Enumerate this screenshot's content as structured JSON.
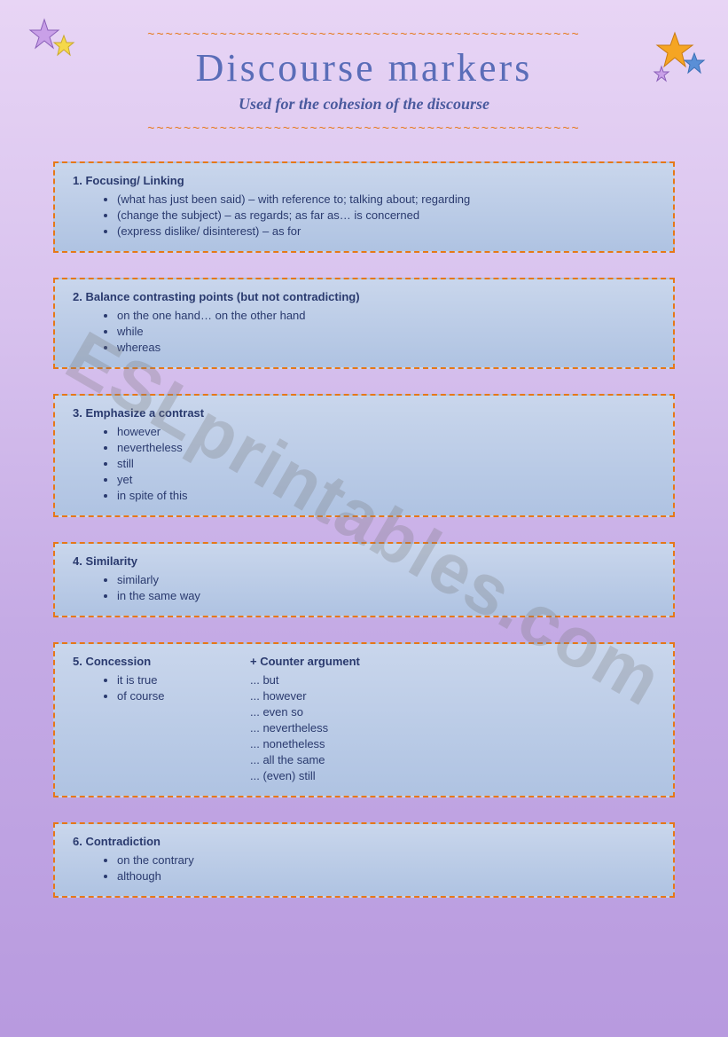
{
  "header": {
    "title": "Discourse markers",
    "subtitle": "Used for the cohesion of the discourse",
    "wave": "~~~~~~~~~~~~~~~~~~~~~~~~~~~~~~~~~~~~~~~~~~~~~~~~"
  },
  "watermark": "ESLprintables.com",
  "boxes": [
    {
      "num": "1.",
      "title": "Focusing/ Linking",
      "type": "simple",
      "items": [
        "(what has just been said) – with reference to; talking about; regarding",
        "(change the subject) – as regards;  as far as… is concerned",
        "(express dislike/ disinterest) – as for"
      ]
    },
    {
      "num": "2.",
      "title": "Balance contrasting points (but not contradicting)",
      "type": "simple",
      "items": [
        "on the one hand… on the other hand",
        "while",
        "whereas"
      ]
    },
    {
      "num": "3.",
      "title": "Emphasize a contrast",
      "type": "simple",
      "items": [
        "however",
        "nevertheless",
        "still",
        "yet",
        "in spite of this"
      ]
    },
    {
      "num": "4.",
      "title": "Similarity",
      "type": "simple",
      "items": [
        "similarly",
        "in the same way"
      ]
    },
    {
      "num": "5.",
      "title": "Concession",
      "type": "twocol",
      "left_items": [
        "it is true",
        "of course"
      ],
      "right_title": "+ Counter argument",
      "right_items": [
        "... but",
        "... however",
        "... even so",
        "... nevertheless",
        "... nonetheless",
        "... all the same",
        "... (even) still"
      ]
    },
    {
      "num": "6.",
      "title": "Contradiction",
      "type": "simple",
      "items": [
        "on the contrary",
        "although"
      ]
    }
  ],
  "colors": {
    "border": "#e67817",
    "box_bg_top": "#c9d6ec",
    "box_bg_bottom": "#afc3e2",
    "title_color": "#5a6db8",
    "text_color": "#2a3a6e"
  }
}
